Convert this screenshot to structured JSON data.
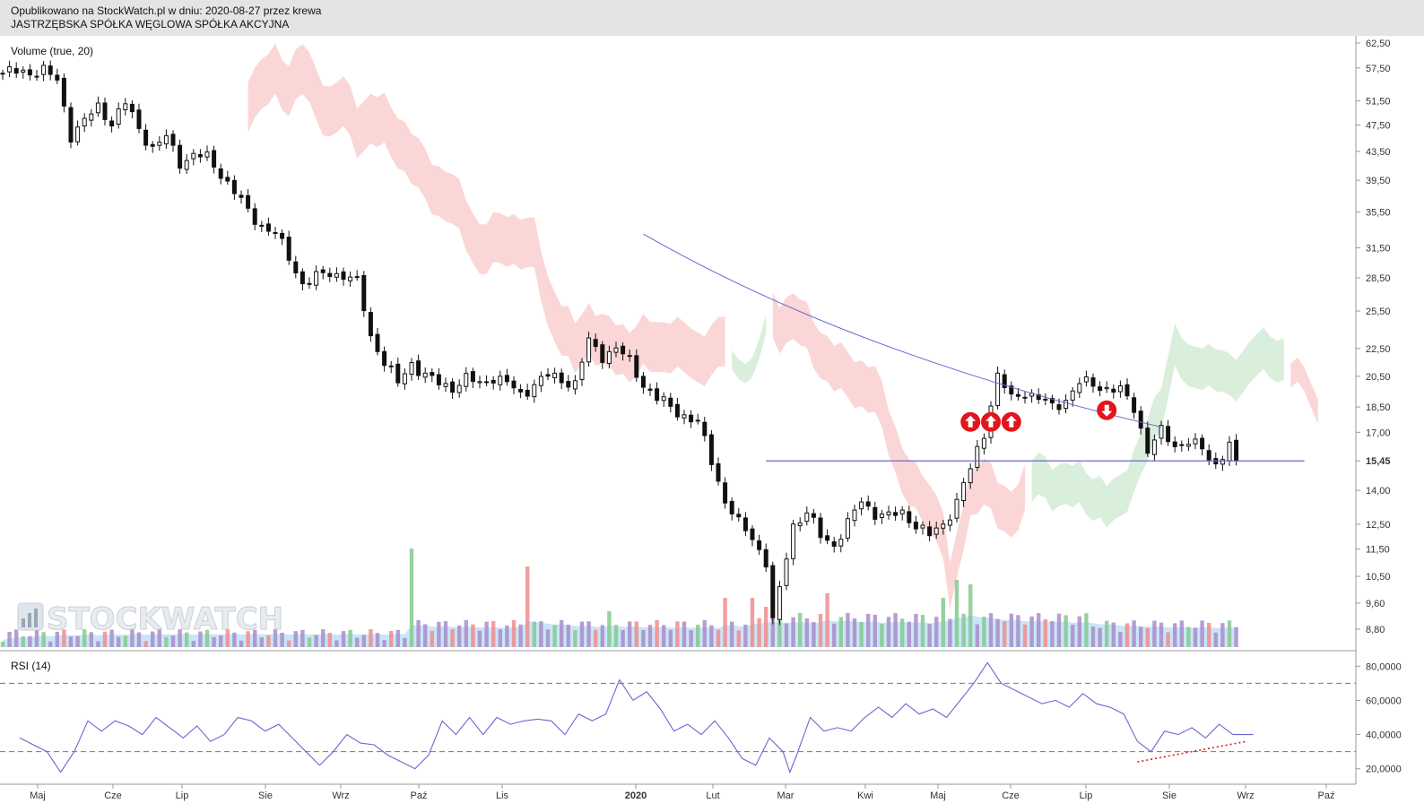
{
  "header": {
    "line1": "Opublikowano na StockWatch.pl w dniu: 2020-08-27 przez krewa",
    "line2": "JASTRZĘBSKA SPÓŁKA WĘGLOWA SPÓŁKA AKCYJNA"
  },
  "watermark": "STOCKWATCH",
  "colors": {
    "candle": "#111111",
    "cloud_bear": "#fbd6d6",
    "cloud_bull": "#d9eedb",
    "volume_up": "#86c98f",
    "volume_down": "#f08d8d",
    "volume_neutral": "#a98dc9",
    "volume_avg": "#9fd0f0",
    "trendline": "#6b66d6",
    "rsi_line": "#6b66d6",
    "rsi_divergence": "#d62020",
    "signal": "#e3141b"
  },
  "chart_data": [
    {
      "type": "candlestick",
      "title": "",
      "panel_label": "Volume (true, 20)",
      "y_ticks": [
        "62,50",
        "57,50",
        "51,50",
        "47,50",
        "43,50",
        "39,50",
        "35,50",
        "31,50",
        "28,50",
        "25,50",
        "22,50",
        "20,50",
        "18,50",
        "17,00",
        "15,45",
        "14,00",
        "12,50",
        "11,50",
        "10,50",
        "9,60",
        "8,80"
      ],
      "y_scale": "log",
      "last_price": "15,45",
      "x_ticks": [
        "Maj",
        "Cze",
        "Lip",
        "Sie",
        "Wrz",
        "Paź",
        "Lis",
        "2020",
        "Lut",
        "Mar",
        "Kwi",
        "Maj",
        "Cze",
        "Lip",
        "Sie",
        "Wrz",
        "Paź"
      ],
      "price_path": [
        [
          0,
          56.5
        ],
        [
          6,
          57.0
        ],
        [
          8,
          55.0
        ],
        [
          10,
          46.0
        ],
        [
          12,
          48.0
        ],
        [
          14,
          50.5
        ],
        [
          16,
          48.0
        ],
        [
          18,
          51.0
        ],
        [
          20,
          47.0
        ],
        [
          22,
          44.0
        ],
        [
          24,
          45.5
        ],
        [
          26,
          42.0
        ],
        [
          28,
          43.0
        ],
        [
          30,
          42.5
        ],
        [
          32,
          40.5
        ],
        [
          34,
          38.0
        ],
        [
          36,
          35.5
        ],
        [
          38,
          34.0
        ],
        [
          40,
          33.0
        ],
        [
          42,
          30.5
        ],
        [
          44,
          28.0
        ],
        [
          46,
          28.5
        ],
        [
          48,
          29.0
        ],
        [
          50,
          28.8
        ],
        [
          52,
          28.0
        ],
        [
          54,
          23.5
        ],
        [
          56,
          21.5
        ],
        [
          58,
          20.0
        ],
        [
          60,
          21.5
        ],
        [
          62,
          20.5
        ],
        [
          64,
          20.0
        ],
        [
          66,
          19.8
        ],
        [
          68,
          20.3
        ],
        [
          70,
          20.0
        ],
        [
          72,
          20.5
        ],
        [
          74,
          20.0
        ],
        [
          76,
          19.3
        ],
        [
          78,
          20.0
        ],
        [
          80,
          20.5
        ],
        [
          82,
          20.3
        ],
        [
          84,
          20.0
        ],
        [
          86,
          23.0
        ],
        [
          88,
          22.0
        ],
        [
          90,
          22.5
        ],
        [
          92,
          21.5
        ],
        [
          94,
          20.0
        ],
        [
          96,
          19.0
        ],
        [
          98,
          18.5
        ],
        [
          100,
          18.0
        ],
        [
          102,
          17.5
        ],
        [
          104,
          15.5
        ],
        [
          106,
          13.5
        ],
        [
          108,
          12.5
        ],
        [
          110,
          12.0
        ],
        [
          112,
          11.0
        ],
        [
          113,
          9.0
        ],
        [
          114,
          10.0
        ],
        [
          116,
          12.5
        ],
        [
          118,
          13.0
        ],
        [
          120,
          12.0
        ],
        [
          122,
          11.7
        ],
        [
          124,
          12.5
        ],
        [
          126,
          13.5
        ],
        [
          128,
          13.0
        ],
        [
          130,
          12.8
        ],
        [
          132,
          13.0
        ],
        [
          134,
          12.5
        ],
        [
          136,
          12.0
        ],
        [
          138,
          12.5
        ],
        [
          140,
          13.5
        ],
        [
          142,
          15.0
        ],
        [
          144,
          17.0
        ],
        [
          146,
          20.5
        ],
        [
          148,
          19.0
        ],
        [
          150,
          19.5
        ],
        [
          152,
          19.0
        ],
        [
          154,
          18.5
        ],
        [
          156,
          19.0
        ],
        [
          158,
          20.0
        ],
        [
          160,
          20.0
        ],
        [
          162,
          19.7
        ],
        [
          164,
          19.5
        ],
        [
          166,
          18.5
        ],
        [
          168,
          16.0
        ],
        [
          170,
          17.0
        ],
        [
          172,
          16.3
        ],
        [
          174,
          16.5
        ],
        [
          176,
          16.0
        ],
        [
          178,
          15.3
        ],
        [
          180,
          16.3
        ],
        [
          181,
          15.45
        ]
      ],
      "signals": [
        {
          "direction": "up",
          "day": 142
        },
        {
          "direction": "up",
          "day": 145
        },
        {
          "direction": "up",
          "day": 148
        },
        {
          "direction": "down",
          "day": 162
        }
      ],
      "horizontal_line": 15.45,
      "descending_trendline": [
        [
          94,
          33.0
        ],
        [
          170,
          17.3
        ]
      ],
      "volume_spikes": [
        [
          60,
          110
        ],
        [
          77,
          90
        ],
        [
          89,
          40
        ],
        [
          106,
          55
        ],
        [
          110,
          55
        ],
        [
          112,
          45
        ],
        [
          121,
          60
        ],
        [
          138,
          55
        ],
        [
          140,
          75
        ],
        [
          142,
          70
        ]
      ]
    },
    {
      "type": "line",
      "title": "",
      "panel_label": "RSI (14)",
      "y_ticks": [
        "80,0000",
        "60,0000",
        "40,0000",
        "20,0000"
      ],
      "ylim": [
        12,
        88
      ],
      "levels": [
        70,
        30
      ],
      "rsi": [
        [
          0,
          38
        ],
        [
          4,
          30
        ],
        [
          6,
          18
        ],
        [
          8,
          30
        ],
        [
          10,
          48
        ],
        [
          12,
          42
        ],
        [
          14,
          48
        ],
        [
          16,
          45
        ],
        [
          18,
          40
        ],
        [
          20,
          50
        ],
        [
          22,
          44
        ],
        [
          24,
          38
        ],
        [
          26,
          45
        ],
        [
          28,
          36
        ],
        [
          30,
          40
        ],
        [
          32,
          50
        ],
        [
          34,
          48
        ],
        [
          36,
          42
        ],
        [
          38,
          46
        ],
        [
          40,
          38
        ],
        [
          42,
          30
        ],
        [
          44,
          22
        ],
        [
          46,
          30
        ],
        [
          48,
          40
        ],
        [
          50,
          35
        ],
        [
          52,
          34
        ],
        [
          54,
          28
        ],
        [
          56,
          24
        ],
        [
          58,
          20
        ],
        [
          60,
          28
        ],
        [
          62,
          48
        ],
        [
          64,
          40
        ],
        [
          66,
          50
        ],
        [
          68,
          40
        ],
        [
          70,
          50
        ],
        [
          72,
          46
        ],
        [
          74,
          48
        ],
        [
          76,
          49
        ],
        [
          78,
          48
        ],
        [
          80,
          40
        ],
        [
          82,
          52
        ],
        [
          84,
          48
        ],
        [
          86,
          52
        ],
        [
          88,
          72
        ],
        [
          90,
          60
        ],
        [
          92,
          65
        ],
        [
          94,
          55
        ],
        [
          96,
          42
        ],
        [
          98,
          46
        ],
        [
          100,
          40
        ],
        [
          102,
          48
        ],
        [
          104,
          38
        ],
        [
          106,
          26
        ],
        [
          108,
          22
        ],
        [
          110,
          38
        ],
        [
          112,
          30
        ],
        [
          113,
          18
        ],
        [
          114,
          28
        ],
        [
          116,
          50
        ],
        [
          118,
          42
        ],
        [
          120,
          44
        ],
        [
          122,
          42
        ],
        [
          124,
          50
        ],
        [
          126,
          56
        ],
        [
          128,
          50
        ],
        [
          130,
          58
        ],
        [
          132,
          52
        ],
        [
          134,
          55
        ],
        [
          136,
          50
        ],
        [
          138,
          60
        ],
        [
          140,
          70
        ],
        [
          142,
          82
        ],
        [
          144,
          70
        ],
        [
          146,
          66
        ],
        [
          148,
          62
        ],
        [
          150,
          58
        ],
        [
          152,
          60
        ],
        [
          154,
          56
        ],
        [
          156,
          64
        ],
        [
          158,
          58
        ],
        [
          160,
          56
        ],
        [
          162,
          52
        ],
        [
          164,
          36
        ],
        [
          166,
          30
        ],
        [
          168,
          42
        ],
        [
          170,
          40
        ],
        [
          172,
          44
        ],
        [
          174,
          38
        ],
        [
          176,
          46
        ],
        [
          178,
          40
        ],
        [
          181,
          40
        ]
      ],
      "divergence_line": [
        [
          164,
          24
        ],
        [
          180,
          36
        ]
      ]
    }
  ]
}
